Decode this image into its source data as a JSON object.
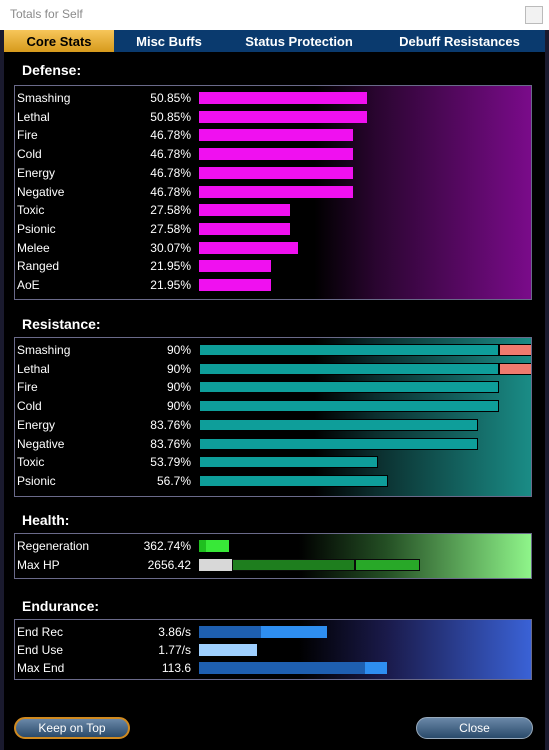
{
  "window": {
    "title": "Totals for Self"
  },
  "tabs": [
    {
      "label": "Core Stats",
      "active": true
    },
    {
      "label": "Misc Buffs",
      "active": false
    },
    {
      "label": "Status Protection",
      "active": false
    },
    {
      "label": "Debuff Resistances",
      "active": false
    }
  ],
  "defense": {
    "title": "Defense:",
    "rows": [
      {
        "label": "Smashing",
        "value": "50.85%",
        "fill": 0.5085
      },
      {
        "label": "Lethal",
        "value": "50.85%",
        "fill": 0.5085
      },
      {
        "label": "Fire",
        "value": "46.78%",
        "fill": 0.4678
      },
      {
        "label": "Cold",
        "value": "46.78%",
        "fill": 0.4678
      },
      {
        "label": "Energy",
        "value": "46.78%",
        "fill": 0.4678
      },
      {
        "label": "Negative",
        "value": "46.78%",
        "fill": 0.4678
      },
      {
        "label": "Toxic",
        "value": "27.58%",
        "fill": 0.2758
      },
      {
        "label": "Psionic",
        "value": "27.58%",
        "fill": 0.2758
      },
      {
        "label": "Melee",
        "value": "30.07%",
        "fill": 0.3007
      },
      {
        "label": "Ranged",
        "value": "21.95%",
        "fill": 0.2195
      },
      {
        "label": "AoE",
        "value": "21.95%",
        "fill": 0.2195
      }
    ]
  },
  "resistance": {
    "title": "Resistance:",
    "rows": [
      {
        "label": "Smashing",
        "value": "90%",
        "fill": 0.9,
        "overcap": 0.1
      },
      {
        "label": "Lethal",
        "value": "90%",
        "fill": 0.9,
        "overcap": 0.1
      },
      {
        "label": "Fire",
        "value": "90%",
        "fill": 0.9,
        "overcap": 0
      },
      {
        "label": "Cold",
        "value": "90%",
        "fill": 0.9,
        "overcap": 0
      },
      {
        "label": "Energy",
        "value": "83.76%",
        "fill": 0.8376,
        "overcap": 0
      },
      {
        "label": "Negative",
        "value": "83.76%",
        "fill": 0.8376,
        "overcap": 0
      },
      {
        "label": "Toxic",
        "value": "53.79%",
        "fill": 0.5379,
        "overcap": 0
      },
      {
        "label": "Psionic",
        "value": "56.7%",
        "fill": 0.567,
        "overcap": 0
      }
    ]
  },
  "health": {
    "title": "Health:",
    "regeneration": {
      "label": "Regeneration",
      "value": "362.74%"
    },
    "max_hp": {
      "label": "Max HP",
      "value": "2656.42"
    }
  },
  "endurance": {
    "title": "Endurance:",
    "end_rec": {
      "label": "End Rec",
      "value": "3.86/s"
    },
    "end_use": {
      "label": "End Use",
      "value": "1.77/s"
    },
    "max_end": {
      "label": "Max End",
      "value": "113.6"
    }
  },
  "buttons": {
    "keep_on_top": "Keep on Top",
    "close": "Close"
  },
  "colors": {
    "tab_active": "#f7c65a",
    "tab_bar": "#0a3a6e",
    "defense_bar": "#f010f0",
    "resistance_bar": "#0e9e9a",
    "resistance_overcap": "#f07a6e",
    "health_bar": "#28a828",
    "endurance_bar": "#2e8ef0"
  }
}
